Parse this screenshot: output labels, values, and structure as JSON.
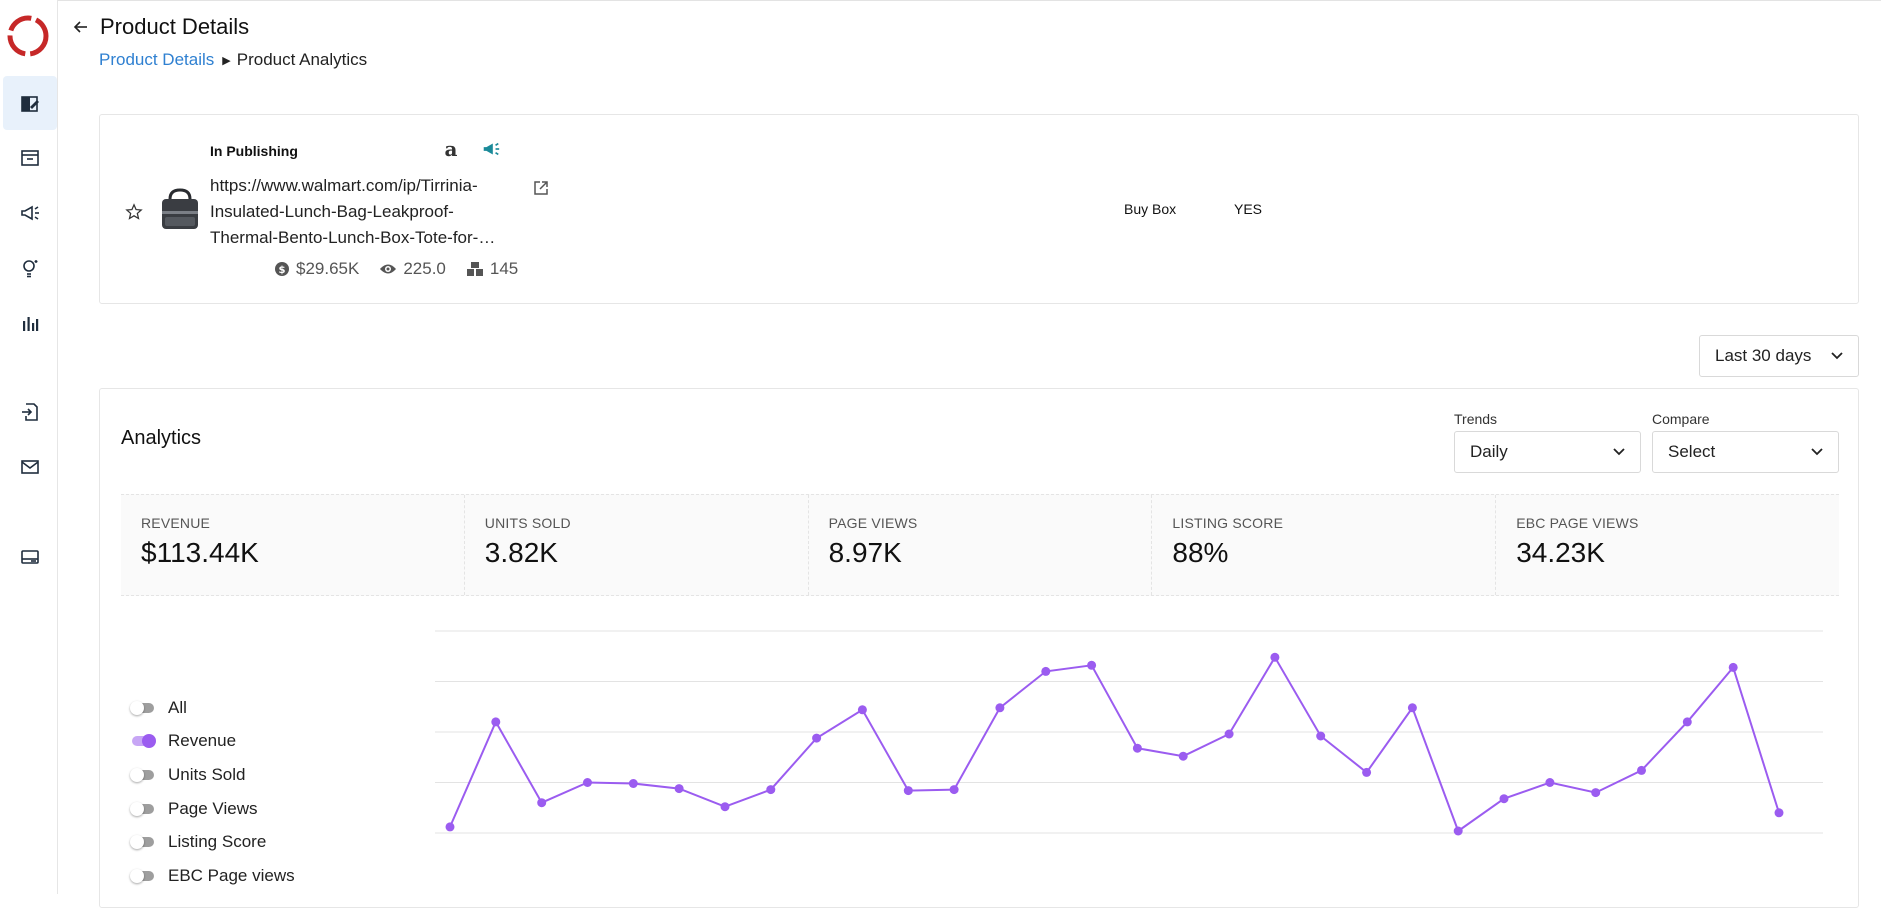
{
  "header": {
    "title": "Product Details"
  },
  "breadcrumb": {
    "parent": "Product Details",
    "current": "Product Analytics"
  },
  "sidebar": {
    "items": [
      {
        "name": "products",
        "icon": "edit-box-icon",
        "active": true
      },
      {
        "name": "inbox",
        "icon": "archive-icon"
      },
      {
        "name": "campaigns",
        "icon": "megaphone-icon"
      },
      {
        "name": "insights",
        "icon": "lightbulb-icon"
      },
      {
        "name": "reports",
        "icon": "bar-chart-icon"
      },
      {
        "name": "import",
        "icon": "file-import-icon"
      },
      {
        "name": "mail",
        "icon": "mail-icon"
      },
      {
        "name": "billing",
        "icon": "card-icon"
      }
    ]
  },
  "product": {
    "status": "In Publishing",
    "url": "https://www.walmart.com/ip/Tirrinia-Insulated-Lunch-Bag-Leakproof-Thermal-Bento-Lunch-Box-Tote-for-…",
    "url_lines": [
      "https://www.walmart.com/ip/Tirrinia-",
      "Insulated-Lunch-Bag-Leakproof-",
      "Thermal-Bento-Lunch-Box-Tote-for-…"
    ],
    "revenue": "$29.65K",
    "views": "225.0",
    "units": "145",
    "buybox_label": "Buy Box",
    "buybox_value": "YES",
    "marketplace_icon": "a"
  },
  "date_range": {
    "selected": "Last 30 days"
  },
  "analytics": {
    "title": "Analytics",
    "trends_label": "Trends",
    "trends_value": "Daily",
    "compare_label": "Compare",
    "compare_value": "Select",
    "metrics": [
      {
        "label": "REVENUE",
        "value": "$113.44K"
      },
      {
        "label": "UNITS SOLD",
        "value": "3.82K"
      },
      {
        "label": "PAGE VIEWS",
        "value": "8.97K"
      },
      {
        "label": "LISTING SCORE",
        "value": "88%"
      },
      {
        "label": "EBC PAGE VIEWS",
        "value": "34.23K"
      }
    ],
    "toggles": [
      {
        "label": "All",
        "on": false
      },
      {
        "label": "Revenue",
        "on": true
      },
      {
        "label": "Units Sold",
        "on": false
      },
      {
        "label": "Page Views",
        "on": false
      },
      {
        "label": "Listing Score",
        "on": false
      },
      {
        "label": "EBC Page views",
        "on": false
      }
    ]
  },
  "colors": {
    "accent": "#9b5cf0",
    "link": "#2f80d1",
    "logo": "#c62828",
    "teal": "#1a8a99"
  },
  "chart_data": {
    "type": "line",
    "title": "",
    "series": [
      {
        "name": "Revenue",
        "values": [
          0.03,
          0.55,
          0.15,
          0.25,
          0.245,
          0.22,
          0.13,
          0.215,
          0.47,
          0.61,
          0.21,
          0.215,
          0.62,
          0.8,
          0.83,
          0.42,
          0.38,
          0.49,
          0.87,
          0.48,
          0.3,
          0.62,
          0.01,
          0.17,
          0.25,
          0.2,
          0.31,
          0.55,
          0.82,
          0.1
        ]
      }
    ],
    "ylim": [
      0,
      1
    ],
    "grid": true
  }
}
